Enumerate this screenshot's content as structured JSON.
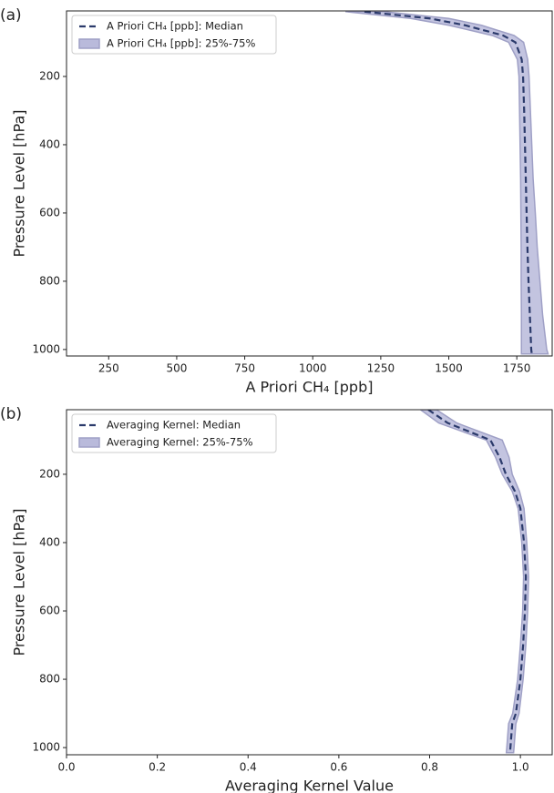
{
  "chart_data": [
    {
      "type": "profile",
      "panel_label": "(a)",
      "x_label": "A Priori CH₄ [ppb]",
      "y_label": "Pressure Level [hPa]",
      "y": [
        10,
        30,
        50,
        80,
        100,
        150,
        200,
        300,
        400,
        500,
        600,
        700,
        800,
        900,
        1000,
        1013
      ],
      "series": [
        {
          "name": "A Priori CH₄ [ppb]: Median",
          "color": "#2b3a6b",
          "values": [
            1190,
            1430,
            1560,
            1700,
            1745,
            1768,
            1773,
            1777,
            1780,
            1783,
            1786,
            1789,
            1793,
            1798,
            1803,
            1805
          ]
        },
        {
          "name": "A Priori CH₄ [ppb]: 25%-75%",
          "color": "#b9badb",
          "lower": [
            1120,
            1360,
            1500,
            1660,
            1720,
            1752,
            1758,
            1760,
            1762,
            1764,
            1765,
            1766,
            1766,
            1767,
            1767,
            1767
          ],
          "upper": [
            1260,
            1500,
            1620,
            1740,
            1775,
            1790,
            1795,
            1800,
            1805,
            1810,
            1818,
            1825,
            1835,
            1845,
            1860,
            1865
          ]
        }
      ],
      "xlim": [
        95,
        1880
      ],
      "xticks": [
        250,
        500,
        750,
        1000,
        1250,
        1500,
        1750
      ],
      "ylim": [
        1019,
        8
      ],
      "yticks": [
        200,
        400,
        600,
        800,
        1000
      ],
      "legend": "upper left"
    },
    {
      "type": "profile",
      "panel_label": "(b)",
      "x_label": "Averaging Kernel Value",
      "y_label": "Pressure Level [hPa]",
      "y": [
        11,
        50,
        100,
        150,
        200,
        250,
        300,
        400,
        500,
        600,
        700,
        800,
        900,
        930,
        1000,
        1015
      ],
      "series": [
        {
          "name": "Averaging Kernel: Median",
          "color": "#2b3a6b",
          "values": [
            0.797,
            0.84,
            0.934,
            0.954,
            0.968,
            0.988,
            1.0,
            1.008,
            1.012,
            1.01,
            1.006,
            1.0,
            0.99,
            0.982,
            0.978,
            0.977
          ]
        },
        {
          "name": "Averaging Kernel: 25%-75%",
          "color": "#b9badb",
          "lower": [
            0.78,
            0.82,
            0.925,
            0.945,
            0.96,
            0.982,
            0.995,
            1.003,
            1.007,
            1.005,
            1.0,
            0.994,
            0.983,
            0.974,
            0.97,
            0.969
          ],
          "upper": [
            0.815,
            0.86,
            0.96,
            0.975,
            0.982,
            0.998,
            1.008,
            1.014,
            1.018,
            1.016,
            1.012,
            1.006,
            0.997,
            0.99,
            0.986,
            0.985
          ]
        }
      ],
      "xlim": [
        0,
        1.07
      ],
      "xticks": [
        {
          "value": 0,
          "label": "0.0"
        },
        0.2,
        0.4,
        0.6,
        0.8,
        {
          "value": 1,
          "label": "1.0"
        }
      ],
      "ylim": [
        1021,
        11
      ],
      "yticks": [
        200,
        400,
        600,
        800,
        1000
      ],
      "legend": "upper left"
    }
  ]
}
